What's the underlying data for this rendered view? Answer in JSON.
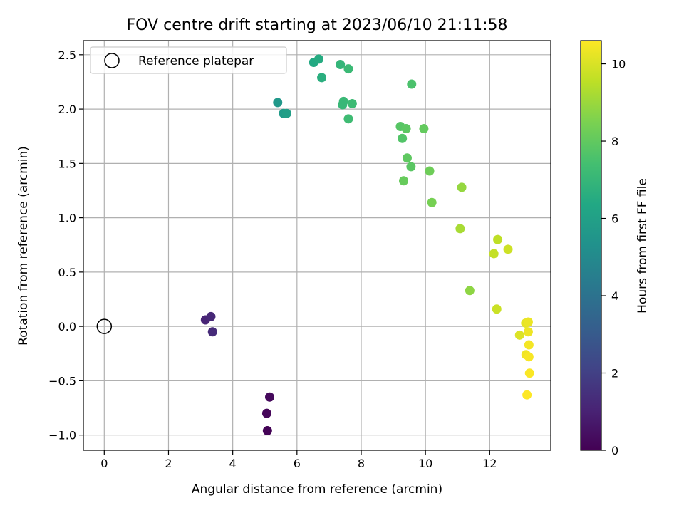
{
  "chart_data": {
    "type": "scatter",
    "title": "FOV centre drift starting at 2023/06/10 21:11:58",
    "xlabel": "Angular distance from reference (arcmin)",
    "ylabel": "Rotation from reference (arcmin)",
    "xlim": [
      -0.65,
      13.9
    ],
    "ylim": [
      -1.14,
      2.63
    ],
    "xticks": [
      0,
      2,
      4,
      6,
      8,
      10,
      12
    ],
    "xtick_labels": [
      "0",
      "2",
      "4",
      "6",
      "8",
      "10",
      "12"
    ],
    "yticks": [
      -1.0,
      -0.5,
      0.0,
      0.5,
      1.0,
      1.5,
      2.0,
      2.5
    ],
    "ytick_labels": [
      "−1.0",
      "−0.5",
      "0.0",
      "0.5",
      "1.0",
      "1.5",
      "2.0",
      "2.5"
    ],
    "grid": true,
    "legend": {
      "placement": "top-left",
      "entries": [
        "Reference platepar"
      ]
    },
    "reference_point": {
      "x": 0.0,
      "y": 0.0
    },
    "colorbar": {
      "label": "Hours from first FF file",
      "colormap": "viridis",
      "range": [
        0,
        10.6
      ],
      "ticks": [
        0,
        2,
        4,
        6,
        8,
        10
      ],
      "tick_labels": [
        "0",
        "2",
        "4",
        "6",
        "8",
        "10"
      ]
    },
    "points": [
      {
        "x": 5.08,
        "y": -0.96,
        "c": 0.05
      },
      {
        "x": 5.06,
        "y": -0.8,
        "c": 0.15
      },
      {
        "x": 5.15,
        "y": -0.65,
        "c": 0.25
      },
      {
        "x": 3.15,
        "y": 0.06,
        "c": 1.1
      },
      {
        "x": 3.32,
        "y": 0.09,
        "c": 1.2
      },
      {
        "x": 3.37,
        "y": -0.05,
        "c": 1.3
      },
      {
        "x": 5.4,
        "y": 2.06,
        "c": 5.6
      },
      {
        "x": 5.58,
        "y": 1.96,
        "c": 5.75
      },
      {
        "x": 5.68,
        "y": 1.96,
        "c": 5.9
      },
      {
        "x": 6.52,
        "y": 2.43,
        "c": 6.4
      },
      {
        "x": 6.68,
        "y": 2.46,
        "c": 6.5
      },
      {
        "x": 6.77,
        "y": 2.29,
        "c": 6.65
      },
      {
        "x": 7.35,
        "y": 2.41,
        "c": 6.95
      },
      {
        "x": 7.45,
        "y": 2.07,
        "c": 7.1
      },
      {
        "x": 7.42,
        "y": 2.04,
        "c": 7.05
      },
      {
        "x": 7.6,
        "y": 2.37,
        "c": 7.15
      },
      {
        "x": 7.6,
        "y": 1.91,
        "c": 7.25
      },
      {
        "x": 7.72,
        "y": 2.05,
        "c": 7.2
      },
      {
        "x": 9.57,
        "y": 2.23,
        "c": 7.55
      },
      {
        "x": 9.22,
        "y": 1.84,
        "c": 7.8
      },
      {
        "x": 9.4,
        "y": 1.82,
        "c": 7.9
      },
      {
        "x": 9.28,
        "y": 1.73,
        "c": 7.7
      },
      {
        "x": 9.95,
        "y": 1.82,
        "c": 8.05
      },
      {
        "x": 9.43,
        "y": 1.55,
        "c": 7.95
      },
      {
        "x": 9.55,
        "y": 1.47,
        "c": 7.85
      },
      {
        "x": 10.13,
        "y": 1.43,
        "c": 8.25
      },
      {
        "x": 9.32,
        "y": 1.34,
        "c": 8.1
      },
      {
        "x": 10.2,
        "y": 1.14,
        "c": 8.4
      },
      {
        "x": 11.13,
        "y": 1.28,
        "c": 8.9
      },
      {
        "x": 11.08,
        "y": 0.9,
        "c": 9.2
      },
      {
        "x": 11.38,
        "y": 0.33,
        "c": 8.8
      },
      {
        "x": 12.25,
        "y": 0.8,
        "c": 9.55
      },
      {
        "x": 12.13,
        "y": 0.67,
        "c": 9.65
      },
      {
        "x": 12.57,
        "y": 0.71,
        "c": 9.8
      },
      {
        "x": 12.22,
        "y": 0.16,
        "c": 9.75
      },
      {
        "x": 13.12,
        "y": 0.03,
        "c": 10.2
      },
      {
        "x": 13.2,
        "y": 0.04,
        "c": 10.3
      },
      {
        "x": 12.93,
        "y": -0.08,
        "c": 10.05
      },
      {
        "x": 13.2,
        "y": -0.05,
        "c": 10.35
      },
      {
        "x": 13.22,
        "y": -0.17,
        "c": 10.45
      },
      {
        "x": 13.13,
        "y": -0.26,
        "c": 10.4
      },
      {
        "x": 13.22,
        "y": -0.28,
        "c": 10.5
      },
      {
        "x": 13.24,
        "y": -0.43,
        "c": 10.55
      },
      {
        "x": 13.16,
        "y": -0.63,
        "c": 10.6
      }
    ]
  }
}
